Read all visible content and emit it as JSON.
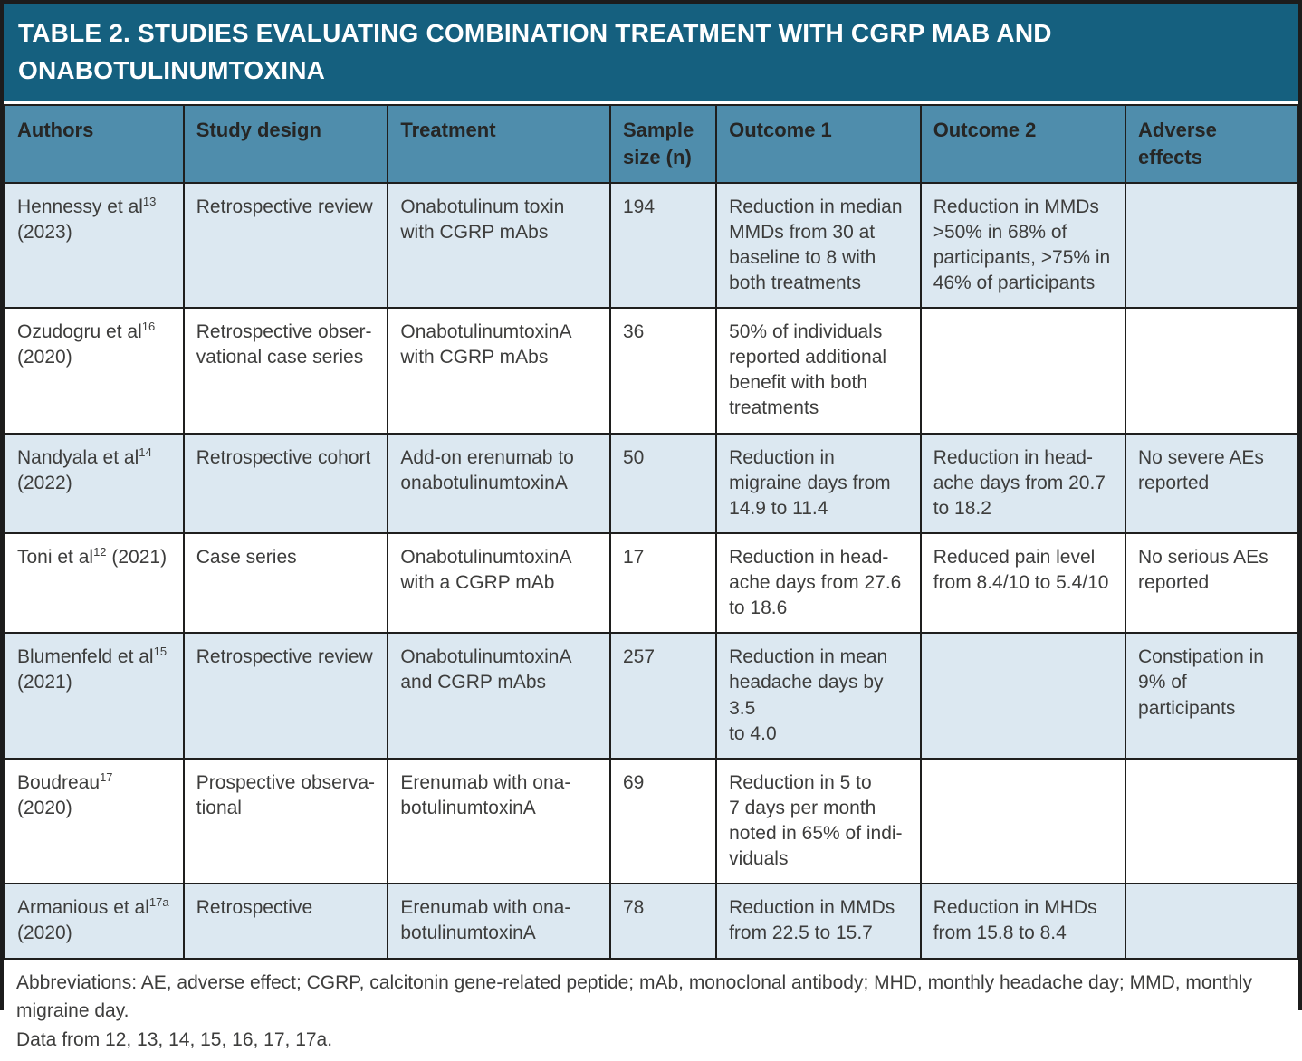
{
  "title": "TABLE 2. STUDIES EVALUATING COMBINATION TREATMENT WITH CGRP MAB AND\nONABOTULINUMTOXINA",
  "colors": {
    "title_bg": "#15607f",
    "header_bg": "#4f8dac",
    "alt_row_bg": "#dce8f1",
    "row_bg": "#ffffff",
    "border": "#1f1f1e",
    "title_text": "#ffffff",
    "body_text": "#3d3d3c"
  },
  "columns": [
    "Authors",
    "Study design",
    "Treatment",
    "Sample size (n)",
    "Outcome 1",
    "Outcome 2",
    "Adverse effects"
  ],
  "rows": [
    {
      "author_name": "Hennessy et al",
      "author_ref": "13",
      "author_rest": "\n(2023)",
      "study_design": "Retrospective review",
      "treatment": "Onabotulinum toxin\nwith CGRP mAbs",
      "sample_size": "194",
      "outcome1": "Reduction in median\nMMDs from 30 at\nbaseline to 8 with\nboth treatments",
      "outcome2": "Reduction in MMDs\n>50% in 68% of\nparticipants, >75% in\n46% of participants",
      "adverse_effects": ""
    },
    {
      "author_name": "Ozudogru et al",
      "author_ref": "16",
      "author_rest": "\n(2020)",
      "study_design": "Retrospective obser-\nvational case series",
      "treatment": "OnabotulinumtoxinA\nwith CGRP mAbs",
      "sample_size": "36",
      "outcome1": "50% of individuals\nreported additional\nbenefit with both\ntreatments",
      "outcome2": "",
      "adverse_effects": ""
    },
    {
      "author_name": "Nandyala et al",
      "author_ref": "14",
      "author_rest": "\n(2022)",
      "study_design": "Retrospective cohort",
      "treatment": "Add-on erenumab to\nonabotulinumtoxinA",
      "sample_size": "50",
      "outcome1": "Reduction in\nmigraine days from\n14.9 to 11.4",
      "outcome2": "Reduction in head-\nache days from 20.7\nto 18.2",
      "adverse_effects": "No severe AEs\nreported"
    },
    {
      "author_name": "Toni et al",
      "author_ref": "12",
      "author_rest": " (2021)",
      "study_design": "Case series",
      "treatment": "OnabotulinumtoxinA\nwith a CGRP mAb",
      "sample_size": "17",
      "outcome1": "Reduction in head-\nache days from 27.6\nto 18.6",
      "outcome2": "Reduced pain level\nfrom 8.4/10 to 5.4/10",
      "adverse_effects": "No serious AEs\nreported"
    },
    {
      "author_name": "Blumenfeld et al",
      "author_ref": "15",
      "author_rest": "\n(2021)",
      "study_design": "Retrospective review",
      "treatment": "OnabotulinumtoxinA\nand CGRP mAbs",
      "sample_size": "257",
      "outcome1": "Reduction in mean\nheadache days by 3.5\nto 4.0",
      "outcome2": "",
      "adverse_effects": "Constipation in\n9% of participants"
    },
    {
      "author_name": "Boudreau",
      "author_ref": "17",
      "author_rest": "\n(2020)",
      "study_design": "Prospective observa-\ntional",
      "treatment": "Erenumab with ona-\nbotulinumtoxinA",
      "sample_size": "69",
      "outcome1": "Reduction in 5 to\n7 days per month\nnoted in 65% of indi-\nviduals",
      "outcome2": "",
      "adverse_effects": ""
    },
    {
      "author_name": "Armanious et al",
      "author_ref": "17a",
      "author_rest": "\n(2020)",
      "study_design": "Retrospective",
      "treatment": "Erenumab with ona-\nbotulinumtoxinA",
      "sample_size": "78",
      "outcome1": "Reduction in MMDs\nfrom 22.5 to 15.7",
      "outcome2": "Reduction in MHDs\nfrom 15.8 to 8.4",
      "adverse_effects": ""
    }
  ],
  "footnotes": {
    "abbreviations": "Abbreviations: AE, adverse effect; CGRP, calcitonin gene-related peptide; mAb, monoclonal antibody; MHD, monthly headache day; MMD, monthly migraine day.",
    "data_from": "Data from 12, 13, 14, 15, 16, 17, 17a."
  }
}
